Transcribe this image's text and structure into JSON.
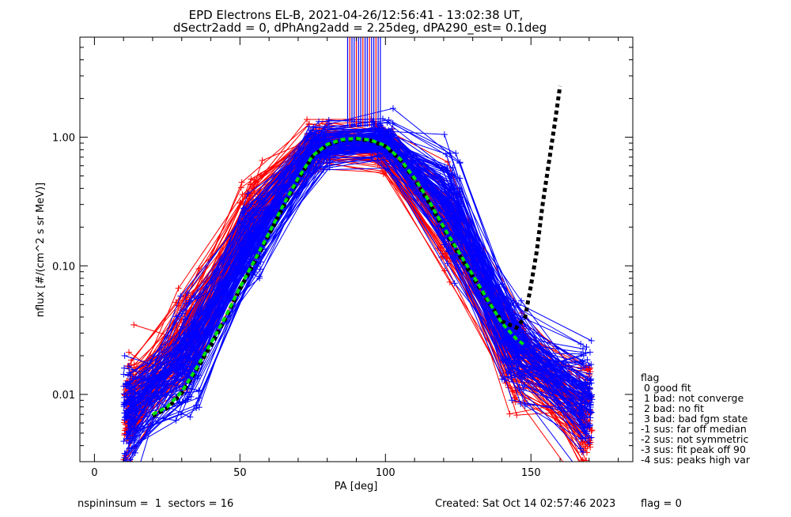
{
  "header": {
    "title_line1": "EPD Electrons EL-B, 2021-04-26/12:56:41 - 13:02:38 UT,",
    "title_line2": "dSectr2add = 0, dPhAng2add = 2.25deg, dPA290_est=   0.1deg"
  },
  "chart_data": {
    "type": "line",
    "xlabel": "PA [deg]",
    "ylabel": "nflux [#/(cm^2 s sr MeV)]",
    "xlim": [
      -5,
      185
    ],
    "ylim": [
      0.003,
      6.0
    ],
    "yscale": "log",
    "xticks": [
      "0",
      "50",
      "100",
      "150"
    ],
    "yticks": [
      "0.01",
      "0.10",
      "1.00"
    ],
    "red_color": "#ff0000",
    "blue_color": "#0000ff",
    "pa_bins": [
      10,
      32,
      54,
      77,
      99,
      122,
      144,
      167
    ],
    "median_profile": {
      "red": [
        0.008,
        0.028,
        0.25,
        0.9,
        0.85,
        0.2,
        0.02,
        0.007
      ],
      "blue": [
        0.007,
        0.02,
        0.16,
        0.85,
        0.95,
        0.3,
        0.025,
        0.009
      ]
    },
    "fit_green": {
      "color": "#00e000",
      "x": [
        20,
        25,
        30,
        35,
        40,
        45,
        50,
        55,
        60,
        65,
        70,
        75,
        80,
        85,
        90,
        95,
        100,
        105,
        110,
        115,
        120,
        125,
        130,
        135,
        140,
        145,
        148
      ],
      "y": [
        0.007,
        0.008,
        0.0105,
        0.016,
        0.025,
        0.04,
        0.068,
        0.11,
        0.18,
        0.3,
        0.48,
        0.72,
        0.88,
        0.96,
        0.98,
        0.95,
        0.86,
        0.68,
        0.48,
        0.32,
        0.2,
        0.13,
        0.085,
        0.055,
        0.036,
        0.027,
        0.024
      ]
    },
    "fit_black": {
      "color": "#000000",
      "x": [
        20,
        25,
        30,
        35,
        40,
        45,
        50,
        55,
        60,
        65,
        70,
        75,
        80,
        85,
        90,
        95,
        100,
        105,
        110,
        115,
        120,
        125,
        130,
        135,
        140,
        145,
        148,
        150,
        152,
        154,
        156,
        158,
        160
      ],
      "y": [
        0.0068,
        0.0078,
        0.0102,
        0.0155,
        0.024,
        0.039,
        0.066,
        0.107,
        0.175,
        0.29,
        0.47,
        0.71,
        0.87,
        0.95,
        0.97,
        0.94,
        0.85,
        0.67,
        0.47,
        0.31,
        0.195,
        0.125,
        0.082,
        0.054,
        0.037,
        0.033,
        0.04,
        0.07,
        0.13,
        0.3,
        0.6,
        1.2,
        2.5
      ]
    },
    "flag_legend": {
      "heading": "flag",
      "items": [
        " 0 good fit",
        " 1 bad: not converge",
        " 2 bad: no fit",
        " 3 bad: bad fgm state",
        "-1 sus: far off median",
        "-2 sus: not symmetric",
        "-3 sus: fit peak off 90",
        "-4 sus: peaks high var"
      ]
    }
  },
  "footer": {
    "left": "nspininsum =  1  sectors = 16",
    "created": "Created: Sat Oct 14 02:57:46 2023",
    "flag": "flag = 0"
  }
}
